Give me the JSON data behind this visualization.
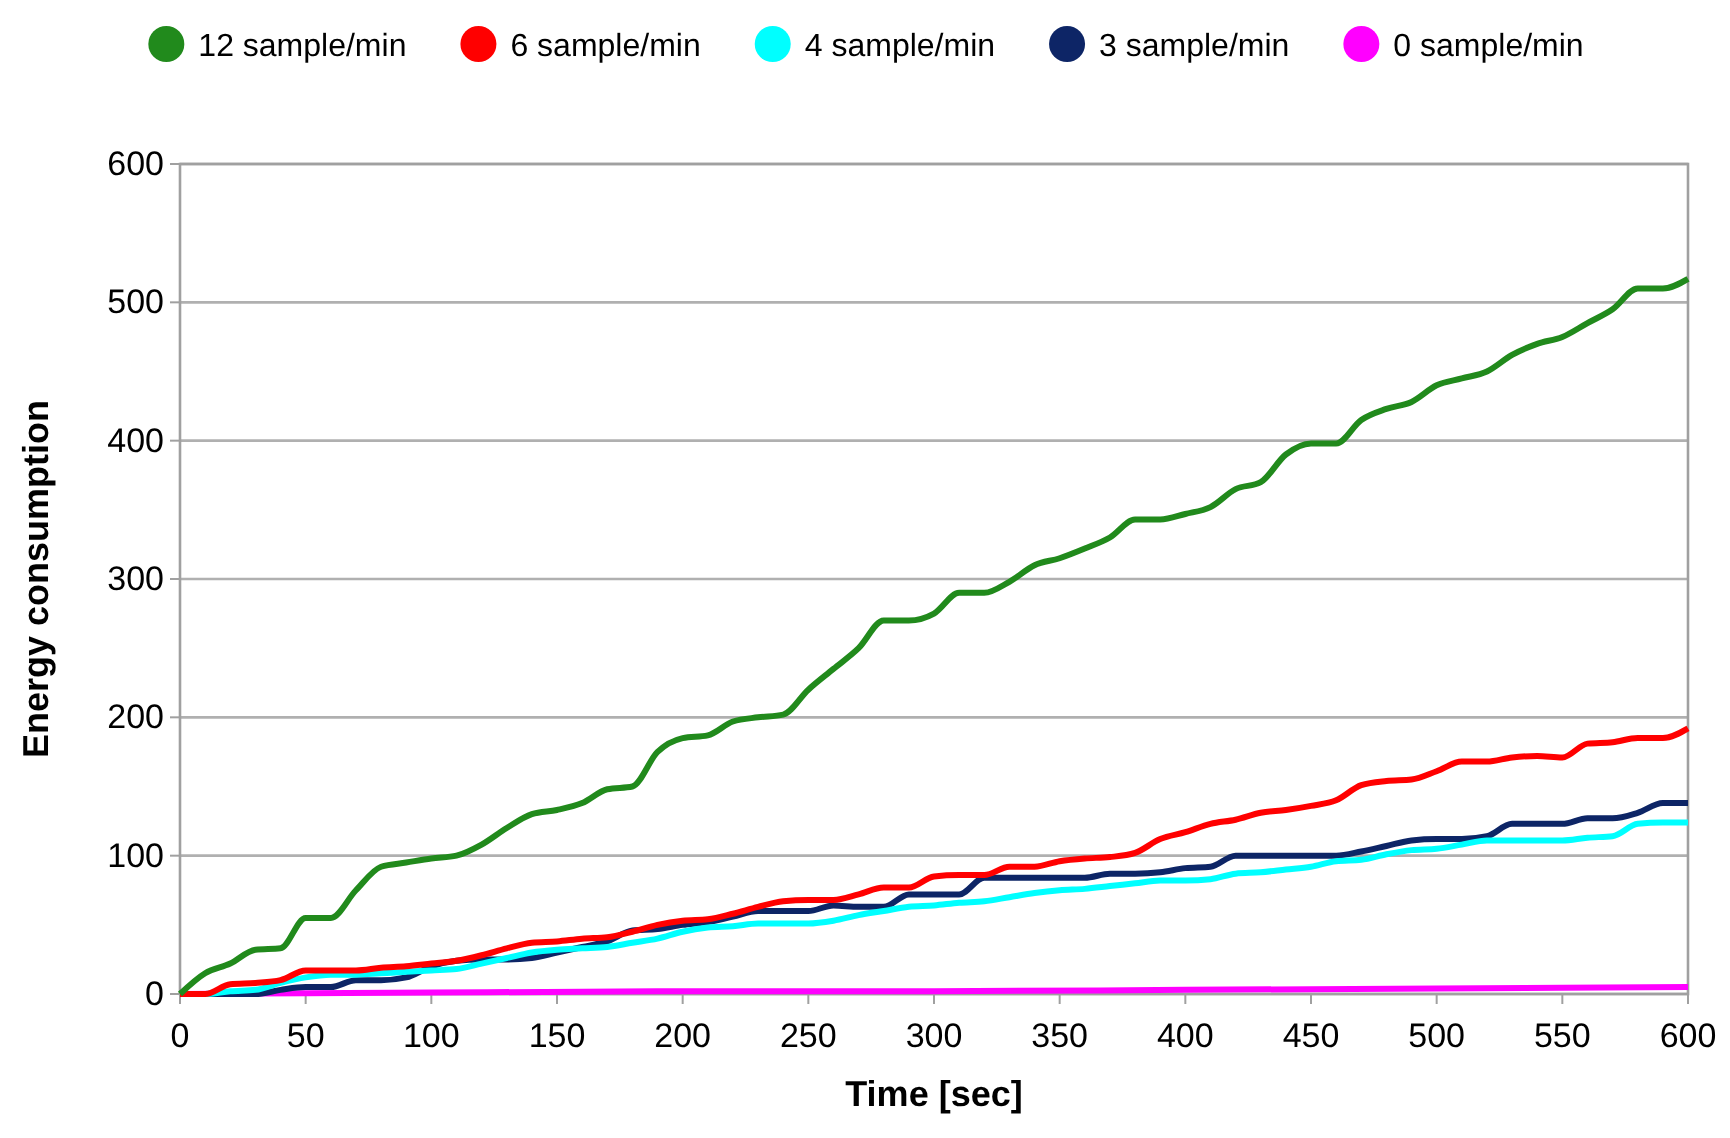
{
  "chart_data": {
    "type": "line",
    "xlabel": "Time [sec]",
    "ylabel": "Energy consumption",
    "xlim": [
      0,
      600
    ],
    "ylim": [
      0,
      600
    ],
    "xticks": [
      0,
      50,
      100,
      150,
      200,
      250,
      300,
      350,
      400,
      450,
      500,
      550,
      600
    ],
    "yticks": [
      0,
      100,
      200,
      300,
      400,
      500,
      600
    ],
    "grid": "y",
    "legend": "top",
    "marker": "none",
    "line_style": "solid",
    "x": [
      0,
      10,
      20,
      30,
      40,
      50,
      60,
      70,
      80,
      90,
      100,
      110,
      120,
      130,
      140,
      150,
      160,
      170,
      180,
      190,
      200,
      210,
      220,
      230,
      240,
      250,
      260,
      270,
      280,
      290,
      300,
      310,
      320,
      330,
      340,
      350,
      360,
      370,
      380,
      390,
      400,
      410,
      420,
      430,
      440,
      450,
      460,
      470,
      480,
      490,
      500,
      510,
      520,
      530,
      540,
      550,
      560,
      570,
      580,
      590,
      600
    ],
    "series": [
      {
        "name": "12 sample/min",
        "color": "#218a1c",
        "values": [
          0,
          15,
          22,
          32,
          33,
          55,
          55,
          75,
          92,
          95,
          98,
          100,
          108,
          120,
          130,
          133,
          138,
          148,
          150,
          175,
          185,
          187,
          197,
          200,
          202,
          220,
          235,
          250,
          270,
          270,
          275,
          290,
          290,
          298,
          310,
          315,
          322,
          330,
          343,
          343,
          347,
          352,
          365,
          370,
          390,
          398,
          398,
          415,
          423,
          428,
          440,
          445,
          450,
          462,
          470,
          475,
          485,
          495,
          510,
          510,
          517
        ]
      },
      {
        "name": "6 sample/min",
        "color": "#ff0000",
        "values": [
          0,
          0,
          7,
          8,
          10,
          17,
          17,
          17,
          19,
          20,
          22,
          24,
          28,
          33,
          37,
          38,
          40,
          41,
          45,
          50,
          53,
          54,
          58,
          63,
          67,
          68,
          68,
          72,
          77,
          77,
          85,
          86,
          86,
          92,
          92,
          96,
          98,
          99,
          102,
          112,
          117,
          123,
          126,
          131,
          133,
          136,
          140,
          151,
          154,
          155,
          161,
          168,
          168,
          171,
          172,
          171,
          181,
          182,
          185,
          185,
          192
        ]
      },
      {
        "name": "4 sample/min",
        "color": "#00ffff",
        "values": [
          0,
          0,
          2,
          3,
          8,
          12,
          14,
          14,
          15,
          16,
          17,
          18,
          22,
          26,
          30,
          32,
          33,
          34,
          37,
          40,
          45,
          48,
          49,
          51,
          51,
          51,
          53,
          57,
          60,
          63,
          64,
          66,
          67,
          70,
          73,
          75,
          76,
          78,
          80,
          82,
          82,
          83,
          87,
          88,
          90,
          92,
          96,
          97,
          101,
          104,
          105,
          108,
          111,
          111,
          111,
          111,
          113,
          114,
          123,
          124,
          124
        ]
      },
      {
        "name": "3 sample/min",
        "color": "#0d2566",
        "values": [
          0,
          0,
          0,
          0,
          3,
          5,
          5,
          10,
          10,
          12,
          20,
          24,
          25,
          25,
          26,
          30,
          34,
          38,
          46,
          47,
          50,
          52,
          56,
          60,
          60,
          60,
          64,
          63,
          63,
          72,
          72,
          72,
          84,
          84,
          84,
          84,
          84,
          87,
          87,
          88,
          91,
          92,
          100,
          100,
          100,
          100,
          100,
          103,
          107,
          111,
          112,
          112,
          114,
          123,
          123,
          123,
          127,
          127,
          131,
          138,
          138
        ]
      },
      {
        "name": "0 sample/min",
        "color": "#ff00ff",
        "x": [
          0,
          100,
          200,
          300,
          400,
          500,
          600
        ],
        "values": [
          0,
          1,
          2,
          2,
          3,
          4,
          5
        ]
      }
    ]
  }
}
